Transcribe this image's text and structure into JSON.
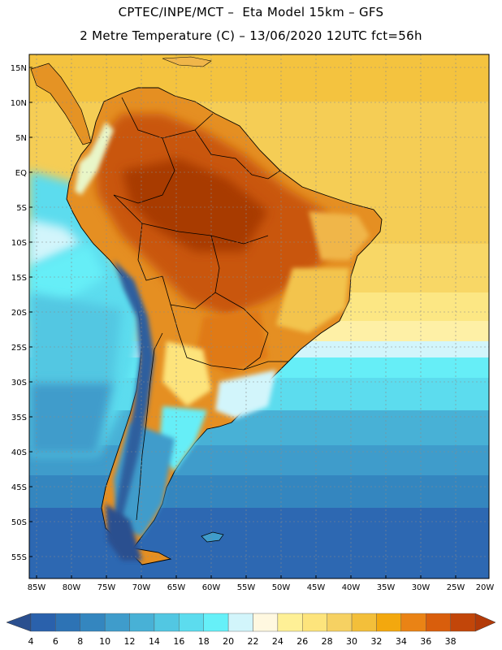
{
  "header": {
    "title_line1": "CPTEC/INPE/MCT –  Eta Model 15km – GFS",
    "title_line2": "2 Metre Temperature (C) – 13/06/2020 12UTC fct=56h"
  },
  "map": {
    "region": "South America",
    "lat_labels": [
      "15N",
      "10N",
      "5N",
      "EQ",
      "5S",
      "10S",
      "15S",
      "20S",
      "25S",
      "30S",
      "35S",
      "40S",
      "45S",
      "50S",
      "55S"
    ],
    "lon_labels": [
      "85W",
      "80W",
      "75W",
      "70W",
      "65W",
      "60W",
      "55W",
      "50W",
      "45W",
      "40W",
      "35W",
      "30W",
      "25W",
      "20W"
    ],
    "colors": {
      "ocean_tropical": "#f6cc52",
      "ocean_subtropical": "#fce784",
      "ocean_temperate": "#52d7ec",
      "ocean_cold": "#2a6fb6",
      "land_hot": "#c8500f",
      "land_very_hot": "#a83a05",
      "andes_cold": "#2f5f9e",
      "border": "#000000",
      "grid": "#888888"
    }
  },
  "colorbar": {
    "labels": [
      "4",
      "6",
      "8",
      "10",
      "12",
      "14",
      "16",
      "18",
      "20",
      "22",
      "24",
      "26",
      "28",
      "30",
      "32",
      "34",
      "36",
      "38"
    ],
    "colors": [
      "#2a61ac",
      "#2d73b5",
      "#3486bf",
      "#3f9ccb",
      "#48b1d6",
      "#52c7e2",
      "#5cdcee",
      "#66f0f8",
      "#d2f5fb",
      "#fff8e0",
      "#fef096",
      "#fde47c",
      "#f6d162",
      "#f3bf3a",
      "#f3a80e",
      "#ea8315",
      "#d95e0c",
      "#c24609"
    ],
    "left_arrow_color": "#2a4f8f",
    "right_arrow_color": "#b33a08"
  }
}
